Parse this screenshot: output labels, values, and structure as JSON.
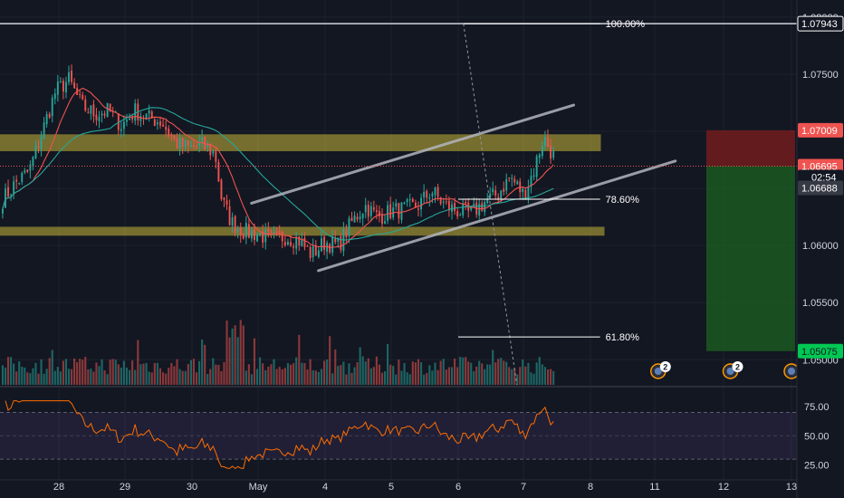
{
  "chart_data": {
    "type": "candlestick",
    "colors": {
      "background": "#131722",
      "up": "#26a69a",
      "down": "#ef5350",
      "ma_fast": "#ef5350",
      "ma_slow": "#26a69a",
      "zone": "#d8c53a",
      "channel": "#b2b5be",
      "rsi_band": "#7e57c2",
      "rsi_line": "#ff6d00",
      "stop_zone": "#7f1d1d",
      "target_zone": "#1b5e20",
      "last_price_tag": "#ef5350",
      "target_tag": "#00c853"
    },
    "price_axis": {
      "ylim": [
        1.0478,
        1.0815
      ],
      "ticks": [
        "1.05000",
        "1.05500",
        "1.06000",
        "1.06500",
        "1.07000",
        "1.07500",
        "1.08000"
      ]
    },
    "x_axis": {
      "ticks": [
        {
          "label": "28",
          "day": 28
        },
        {
          "label": "29",
          "day": 29
        },
        {
          "label": "30",
          "day": 30
        },
        {
          "label": "May",
          "day": 31
        },
        {
          "label": "4",
          "day": 32
        },
        {
          "label": "5",
          "day": 33
        },
        {
          "label": "6",
          "day": 34
        },
        {
          "label": "7",
          "day": 35
        },
        {
          "label": "8",
          "day": 36
        },
        {
          "label": "11",
          "day": 37
        },
        {
          "label": "12",
          "day": 38
        },
        {
          "label": "13",
          "day": 39
        }
      ]
    },
    "price_series": {
      "start_day": 27.15,
      "step_day": 0.0417,
      "anchors": [
        [
          27.15,
          1.064
        ],
        [
          27.35,
          1.0655
        ],
        [
          27.55,
          1.0665
        ],
        [
          27.75,
          1.07
        ],
        [
          27.95,
          1.0735
        ],
        [
          28.15,
          1.0745
        ],
        [
          28.35,
          1.0722
        ],
        [
          28.55,
          1.0715
        ],
        [
          28.75,
          1.0718
        ],
        [
          28.95,
          1.0705
        ],
        [
          29.15,
          1.0718
        ],
        [
          29.35,
          1.0712
        ],
        [
          29.55,
          1.0708
        ],
        [
          29.75,
          1.069
        ],
        [
          29.95,
          1.0685
        ],
        [
          30.15,
          1.0688
        ],
        [
          30.35,
          1.068
        ],
        [
          30.45,
          1.064
        ],
        [
          30.6,
          1.062
        ],
        [
          30.8,
          1.0612
        ],
        [
          31.0,
          1.061
        ],
        [
          31.2,
          1.0605
        ],
        [
          31.4,
          1.0608
        ],
        [
          31.6,
          1.0605
        ],
        [
          31.8,
          1.0592
        ],
        [
          32.0,
          1.0603
        ],
        [
          32.2,
          1.06
        ],
        [
          32.4,
          1.062
        ],
        [
          32.6,
          1.0635
        ],
        [
          32.8,
          1.0625
        ],
        [
          33.0,
          1.063
        ],
        [
          33.2,
          1.0632
        ],
        [
          33.4,
          1.0635
        ],
        [
          33.6,
          1.0648
        ],
        [
          33.8,
          1.0635
        ],
        [
          34.0,
          1.063
        ],
        [
          34.2,
          1.0628
        ],
        [
          34.4,
          1.0638
        ],
        [
          34.6,
          1.0645
        ],
        [
          34.8,
          1.066
        ],
        [
          35.0,
          1.0645
        ],
        [
          35.15,
          1.0665
        ],
        [
          35.3,
          1.0695
        ],
        [
          35.45,
          1.0678
        ],
        [
          35.48,
          1.067
        ]
      ],
      "ma_fast_period": 12,
      "ma_slow_period": 40
    },
    "resistance_zone": [
      1.0683,
      1.0697
    ],
    "support_zone": [
      1.0609,
      1.0616
    ],
    "channel": {
      "upper": [
        [
          30.9,
          1.0637
        ],
        [
          35.75,
          1.0723
        ]
      ],
      "lower": [
        [
          31.9,
          1.0578
        ],
        [
          37.3,
          1.0674
        ]
      ]
    },
    "fibonacci": {
      "top_price": 1.07943,
      "anchor_day": 34.08,
      "line_end_day": 36.15,
      "bottom_anchor_day": 34.9,
      "levels": [
        {
          "label": "100.00%",
          "price": 1.07943
        },
        {
          "label": "78.60%",
          "price": 1.06406
        },
        {
          "label": "61.80%",
          "price": 1.05199
        }
      ]
    },
    "horizontal_line_price": 1.07943,
    "last_price_line": 1.06695,
    "position": {
      "entry": 1.06695,
      "stop": 1.07009,
      "target": 1.05075,
      "from_day": 37.75
    },
    "price_tags": [
      {
        "text": "1.07943",
        "price": 1.07943,
        "style": "white-border"
      },
      {
        "text": "1.07009",
        "price": 1.07009,
        "style": "red"
      },
      {
        "text": "1.06695",
        "price": 1.06695,
        "style": "red"
      },
      {
        "text": "02:54",
        "price": 1.066,
        "style": "dark"
      },
      {
        "text": "1.06688",
        "price": 1.06505,
        "style": "grey"
      },
      {
        "text": "1.05075",
        "price": 1.05075,
        "style": "green"
      }
    ],
    "events": [
      {
        "day": 37.05,
        "count": "2"
      },
      {
        "day": 38.1,
        "count": "2"
      },
      {
        "day": 39.0,
        "count": ""
      }
    ],
    "rsi": {
      "ylim": [
        20,
        82
      ],
      "ticks": [
        "75.00",
        "50.00",
        "25.00"
      ],
      "band": [
        30,
        70
      ]
    }
  }
}
